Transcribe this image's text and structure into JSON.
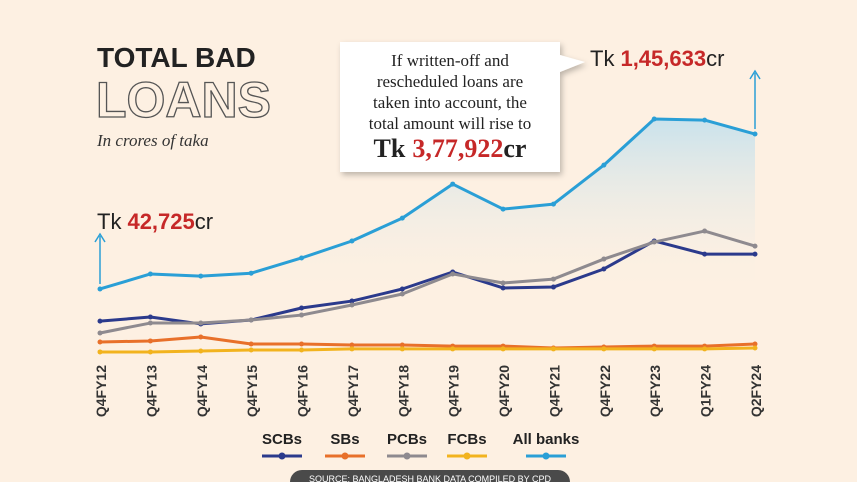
{
  "chart_data": {
    "type": "line",
    "title": "TOTAL BAD",
    "title_outline": "LOANS",
    "subtitle": "In crores of taka",
    "categories": [
      "Q4FY12",
      "Q4FY13",
      "Q4FY14",
      "Q4FY15",
      "Q4FY16",
      "Q4FY17",
      "Q4FY18",
      "Q4FY19",
      "Q4FY20",
      "Q4FY21",
      "Q4FY22",
      "Q4FY23",
      "Q1FY24",
      "Q2FY24"
    ],
    "ylim": [
      0,
      180000
    ],
    "label_prefix": "Tk",
    "label_suffix": "cr",
    "series": [
      {
        "name": "SCBs",
        "color": "#2b3a8c",
        "values": [
          21400,
          24100,
          19500,
          22100,
          30100,
          34700,
          42700,
          54000,
          43400,
          44000,
          56000,
          74600,
          65900,
          65900
        ]
      },
      {
        "name": "SBs",
        "color": "#e8702a",
        "values": [
          7500,
          8200,
          10800,
          6200,
          6200,
          5500,
          5500,
          4800,
          4800,
          3500,
          4200,
          4800,
          4800,
          6200
        ]
      },
      {
        "name": "PCBs",
        "color": "#8e8a8f",
        "values": [
          13500,
          20100,
          20100,
          22100,
          25400,
          32100,
          39400,
          52700,
          46700,
          49300,
          62600,
          73900,
          81200,
          71200
        ]
      },
      {
        "name": "FCBs",
        "color": "#f2b31e",
        "values": [
          900,
          900,
          1500,
          2200,
          2200,
          2900,
          2900,
          2900,
          2900,
          2900,
          2900,
          2900,
          2900,
          3500
        ]
      },
      {
        "name": "All banks",
        "color": "#2a9fd6",
        "values": [
          42725,
          52700,
          51300,
          53200,
          63300,
          74600,
          89800,
          112400,
          95800,
          99100,
          125000,
          155600,
          154900,
          145633
        ],
        "value_labels": [
          "42,725",
          null,
          null,
          null,
          null,
          null,
          null,
          null,
          null,
          null,
          null,
          null,
          null,
          "1,45,633"
        ]
      }
    ],
    "callout": {
      "lines": [
        "If written-off and",
        "rescheduled loans are",
        "taken into account, the",
        "total amount will rise to"
      ],
      "amount": "3,77,922"
    },
    "source": "SOURCE: BANGLADESH BANK DATA COMPILED BY CPD"
  }
}
